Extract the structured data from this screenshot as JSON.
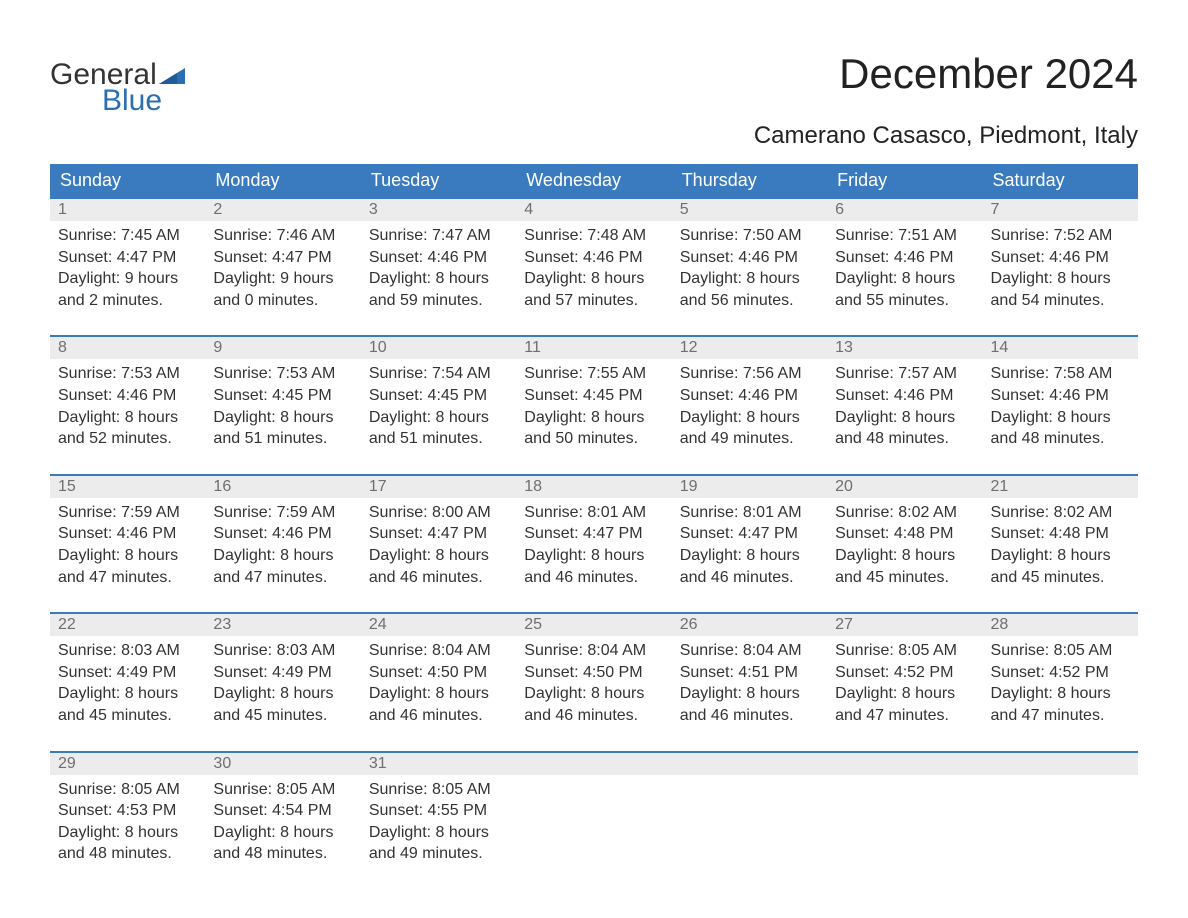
{
  "brand": {
    "line1": "General",
    "line2": "Blue",
    "logo_color": "#2a6fb0"
  },
  "title": "December 2024",
  "location": "Camerano Casasco, Piedmont, Italy",
  "colors": {
    "header_bg": "#3a7bbf",
    "header_text": "#ffffff",
    "row_border": "#3a7bbf",
    "daynum_bg": "#ececec",
    "daynum_text": "#6f6f6f",
    "body_text": "#333333",
    "page_bg": "#ffffff"
  },
  "day_names": [
    "Sunday",
    "Monday",
    "Tuesday",
    "Wednesday",
    "Thursday",
    "Friday",
    "Saturday"
  ],
  "labels": {
    "sunrise": "Sunrise:",
    "sunset": "Sunset:",
    "daylight": "Daylight:"
  },
  "weeks": [
    [
      {
        "n": "1",
        "sunrise": "7:45 AM",
        "sunset": "4:47 PM",
        "dl1": "9 hours",
        "dl2": "and 2 minutes."
      },
      {
        "n": "2",
        "sunrise": "7:46 AM",
        "sunset": "4:47 PM",
        "dl1": "9 hours",
        "dl2": "and 0 minutes."
      },
      {
        "n": "3",
        "sunrise": "7:47 AM",
        "sunset": "4:46 PM",
        "dl1": "8 hours",
        "dl2": "and 59 minutes."
      },
      {
        "n": "4",
        "sunrise": "7:48 AM",
        "sunset": "4:46 PM",
        "dl1": "8 hours",
        "dl2": "and 57 minutes."
      },
      {
        "n": "5",
        "sunrise": "7:50 AM",
        "sunset": "4:46 PM",
        "dl1": "8 hours",
        "dl2": "and 56 minutes."
      },
      {
        "n": "6",
        "sunrise": "7:51 AM",
        "sunset": "4:46 PM",
        "dl1": "8 hours",
        "dl2": "and 55 minutes."
      },
      {
        "n": "7",
        "sunrise": "7:52 AM",
        "sunset": "4:46 PM",
        "dl1": "8 hours",
        "dl2": "and 54 minutes."
      }
    ],
    [
      {
        "n": "8",
        "sunrise": "7:53 AM",
        "sunset": "4:46 PM",
        "dl1": "8 hours",
        "dl2": "and 52 minutes."
      },
      {
        "n": "9",
        "sunrise": "7:53 AM",
        "sunset": "4:45 PM",
        "dl1": "8 hours",
        "dl2": "and 51 minutes."
      },
      {
        "n": "10",
        "sunrise": "7:54 AM",
        "sunset": "4:45 PM",
        "dl1": "8 hours",
        "dl2": "and 51 minutes."
      },
      {
        "n": "11",
        "sunrise": "7:55 AM",
        "sunset": "4:45 PM",
        "dl1": "8 hours",
        "dl2": "and 50 minutes."
      },
      {
        "n": "12",
        "sunrise": "7:56 AM",
        "sunset": "4:46 PM",
        "dl1": "8 hours",
        "dl2": "and 49 minutes."
      },
      {
        "n": "13",
        "sunrise": "7:57 AM",
        "sunset": "4:46 PM",
        "dl1": "8 hours",
        "dl2": "and 48 minutes."
      },
      {
        "n": "14",
        "sunrise": "7:58 AM",
        "sunset": "4:46 PM",
        "dl1": "8 hours",
        "dl2": "and 48 minutes."
      }
    ],
    [
      {
        "n": "15",
        "sunrise": "7:59 AM",
        "sunset": "4:46 PM",
        "dl1": "8 hours",
        "dl2": "and 47 minutes."
      },
      {
        "n": "16",
        "sunrise": "7:59 AM",
        "sunset": "4:46 PM",
        "dl1": "8 hours",
        "dl2": "and 47 minutes."
      },
      {
        "n": "17",
        "sunrise": "8:00 AM",
        "sunset": "4:47 PM",
        "dl1": "8 hours",
        "dl2": "and 46 minutes."
      },
      {
        "n": "18",
        "sunrise": "8:01 AM",
        "sunset": "4:47 PM",
        "dl1": "8 hours",
        "dl2": "and 46 minutes."
      },
      {
        "n": "19",
        "sunrise": "8:01 AM",
        "sunset": "4:47 PM",
        "dl1": "8 hours",
        "dl2": "and 46 minutes."
      },
      {
        "n": "20",
        "sunrise": "8:02 AM",
        "sunset": "4:48 PM",
        "dl1": "8 hours",
        "dl2": "and 45 minutes."
      },
      {
        "n": "21",
        "sunrise": "8:02 AM",
        "sunset": "4:48 PM",
        "dl1": "8 hours",
        "dl2": "and 45 minutes."
      }
    ],
    [
      {
        "n": "22",
        "sunrise": "8:03 AM",
        "sunset": "4:49 PM",
        "dl1": "8 hours",
        "dl2": "and 45 minutes."
      },
      {
        "n": "23",
        "sunrise": "8:03 AM",
        "sunset": "4:49 PM",
        "dl1": "8 hours",
        "dl2": "and 45 minutes."
      },
      {
        "n": "24",
        "sunrise": "8:04 AM",
        "sunset": "4:50 PM",
        "dl1": "8 hours",
        "dl2": "and 46 minutes."
      },
      {
        "n": "25",
        "sunrise": "8:04 AM",
        "sunset": "4:50 PM",
        "dl1": "8 hours",
        "dl2": "and 46 minutes."
      },
      {
        "n": "26",
        "sunrise": "8:04 AM",
        "sunset": "4:51 PM",
        "dl1": "8 hours",
        "dl2": "and 46 minutes."
      },
      {
        "n": "27",
        "sunrise": "8:05 AM",
        "sunset": "4:52 PM",
        "dl1": "8 hours",
        "dl2": "and 47 minutes."
      },
      {
        "n": "28",
        "sunrise": "8:05 AM",
        "sunset": "4:52 PM",
        "dl1": "8 hours",
        "dl2": "and 47 minutes."
      }
    ],
    [
      {
        "n": "29",
        "sunrise": "8:05 AM",
        "sunset": "4:53 PM",
        "dl1": "8 hours",
        "dl2": "and 48 minutes."
      },
      {
        "n": "30",
        "sunrise": "8:05 AM",
        "sunset": "4:54 PM",
        "dl1": "8 hours",
        "dl2": "and 48 minutes."
      },
      {
        "n": "31",
        "sunrise": "8:05 AM",
        "sunset": "4:55 PM",
        "dl1": "8 hours",
        "dl2": "and 49 minutes."
      },
      {
        "n": "",
        "empty": true
      },
      {
        "n": "",
        "empty": true
      },
      {
        "n": "",
        "empty": true
      },
      {
        "n": "",
        "empty": true
      }
    ]
  ]
}
